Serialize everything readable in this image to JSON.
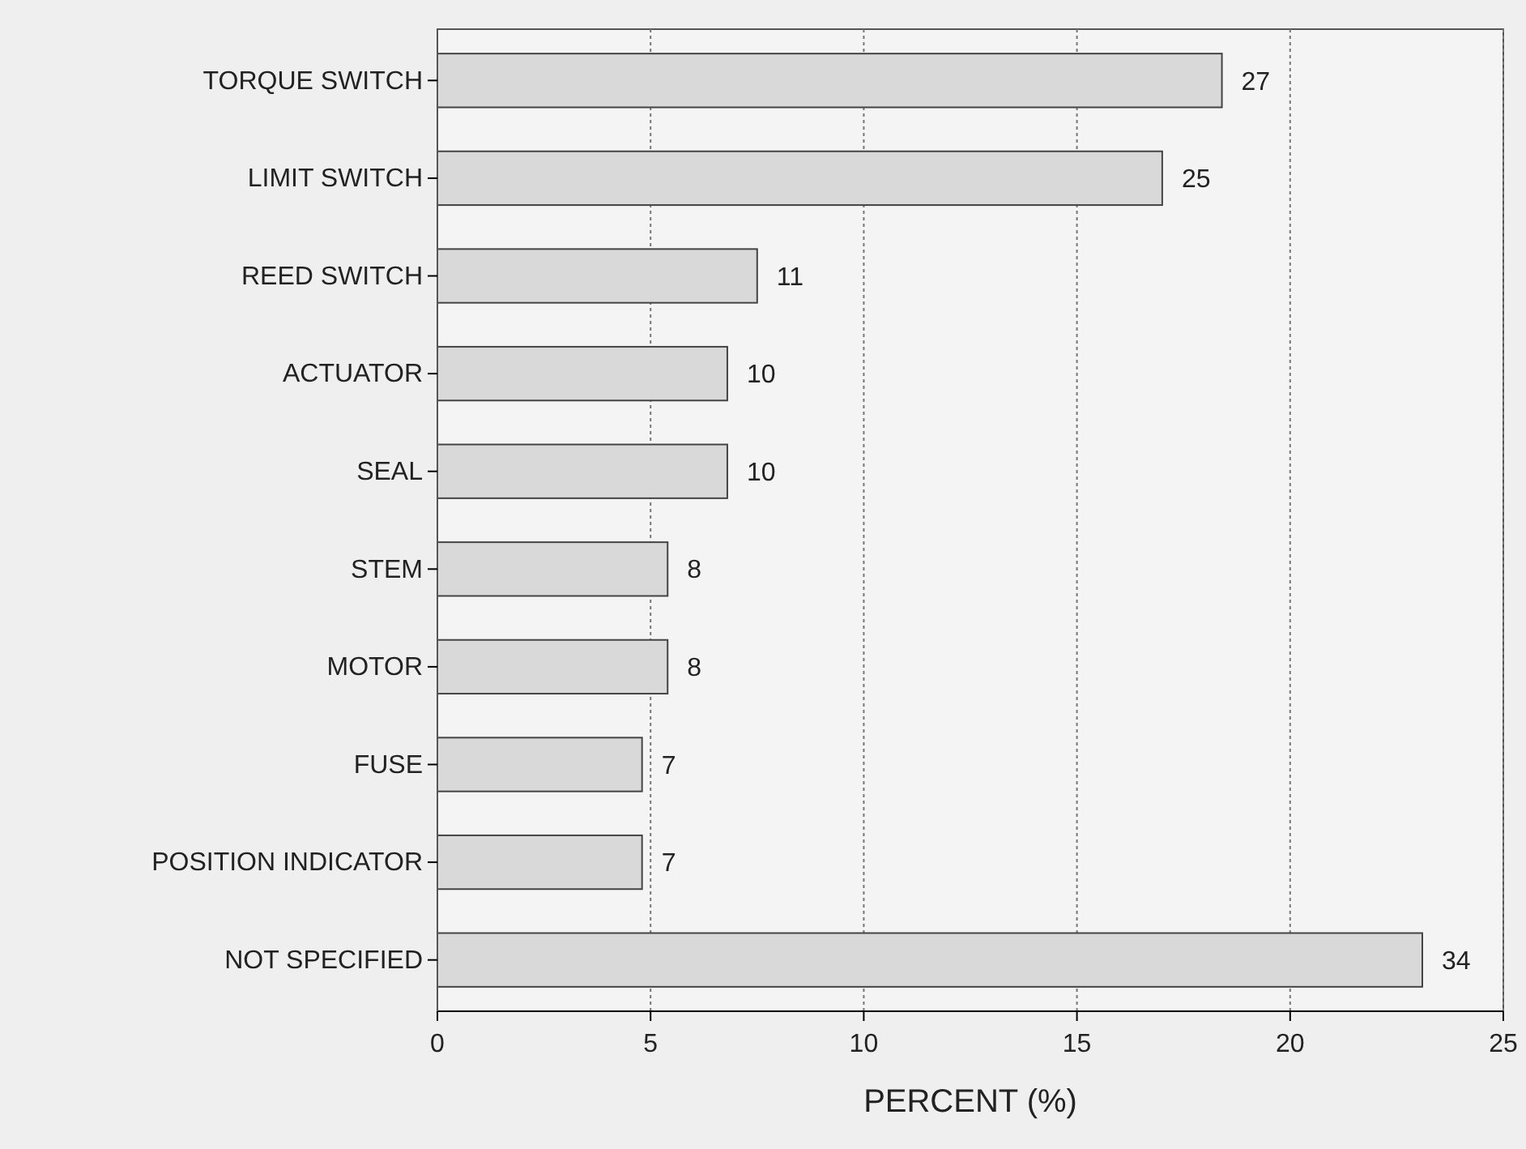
{
  "chart_data": {
    "type": "bar",
    "orientation": "horizontal",
    "xlabel": "PERCENT (%)",
    "categories": [
      "TORQUE SWITCH",
      "LIMIT SWITCH",
      "REED SWITCH",
      "ACTUATOR",
      "SEAL",
      "STEM",
      "MOTOR",
      "FUSE",
      "POSITION INDICATOR",
      "NOT SPECIFIED"
    ],
    "values": [
      18.4,
      17.0,
      7.5,
      6.8,
      6.8,
      5.4,
      5.4,
      4.8,
      4.8,
      23.1
    ],
    "annotations": [
      {
        "text": "27",
        "x": 18.4,
        "y": "TORQUE SWITCH"
      },
      {
        "text": "25",
        "x": 17.0,
        "y": "LIMIT SWITCH"
      },
      {
        "text": "11",
        "x": 7.5,
        "y": "REED SWITCH"
      },
      {
        "text": "10",
        "x": 6.8,
        "y": "ACTUATOR"
      },
      {
        "text": "10",
        "x": 6.8,
        "y": "SEAL"
      },
      {
        "text": "8",
        "x": 5.4,
        "y": "STEM"
      },
      {
        "text": "8",
        "x": 5.4,
        "y": "MOTOR"
      },
      {
        "text": "7",
        "x": 4.8,
        "y": "FUSE"
      },
      {
        "text": "7",
        "x": 4.8,
        "y": "POSITION INDICATOR"
      },
      {
        "text": "34",
        "x": 23.1,
        "y": "NOT SPECIFIED"
      }
    ],
    "color": "#d9d9d9",
    "xlim": [
      0,
      25
    ],
    "xticks": [
      0,
      5,
      10,
      15,
      20,
      25
    ],
    "grid": "x"
  }
}
